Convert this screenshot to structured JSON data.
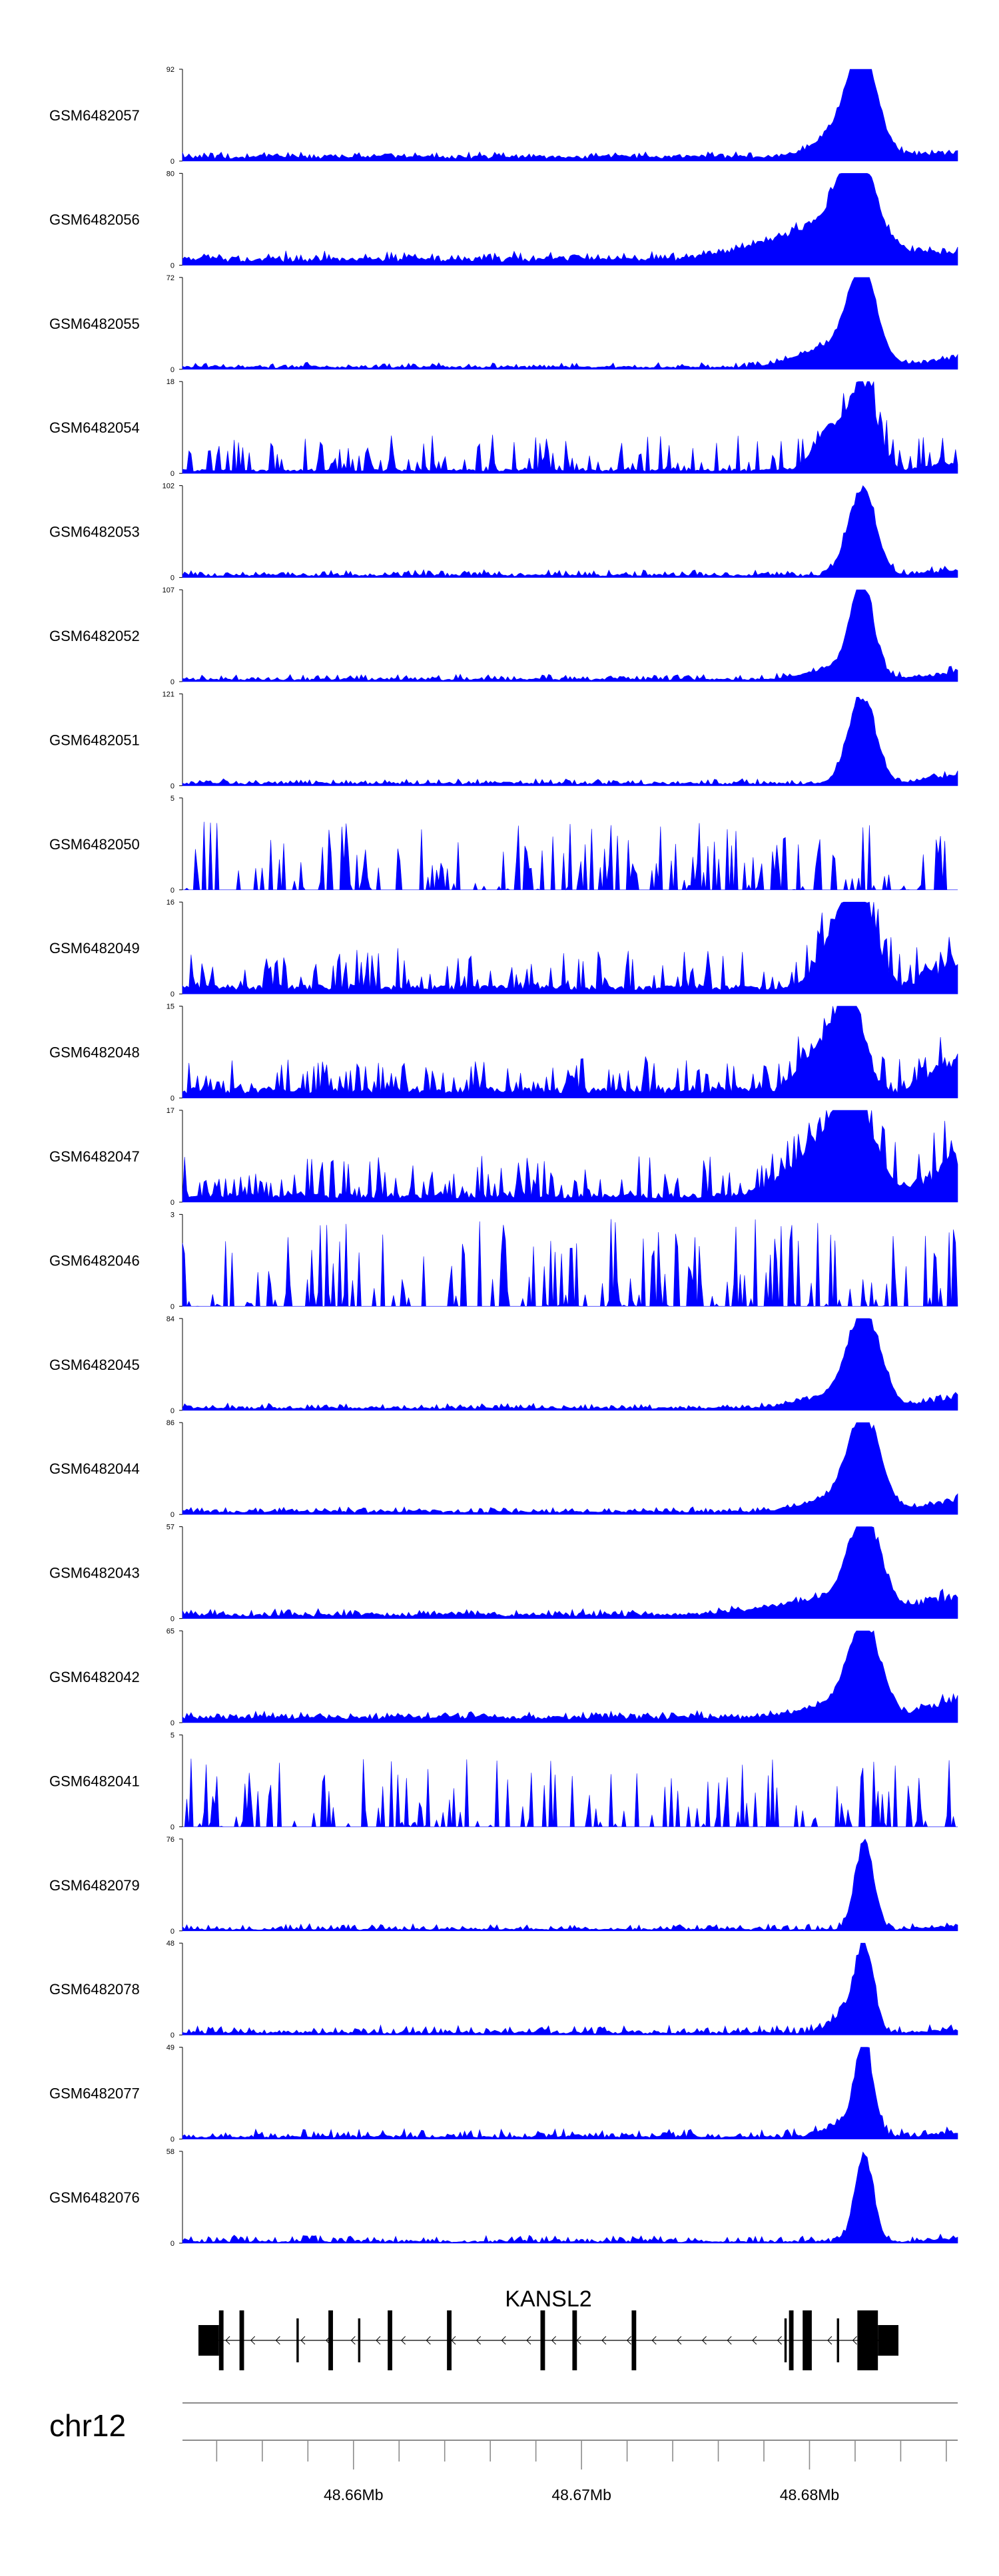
{
  "chart_data": {
    "type": "area",
    "color": "#0000ff",
    "tracks": [
      {
        "name": "GSM6482057",
        "ymax": 92,
        "baseline": 0.06,
        "noise": 0.05,
        "peaks": [
          [
            48.6823,
            1.0,
            0.0006
          ],
          [
            48.6817,
            0.35,
            0.0012
          ]
        ],
        "tail": 0.06
      },
      {
        "name": "GSM6482056",
        "ymax": 80,
        "baseline": 0.08,
        "noise": 0.08,
        "peaks": [
          [
            48.682,
            1.0,
            0.0008
          ],
          [
            48.6805,
            0.35,
            0.0025
          ]
        ],
        "tail": 0.06
      },
      {
        "name": "GSM6482055",
        "ymax": 72,
        "baseline": 0.03,
        "noise": 0.05,
        "peaks": [
          [
            48.6823,
            1.0,
            0.0006
          ],
          [
            48.6812,
            0.25,
            0.0015
          ]
        ],
        "tail": 0.15
      },
      {
        "name": "GSM6482054",
        "ymax": 18,
        "baseline": 0.05,
        "noise": 0.38,
        "peaks": [
          [
            48.6823,
            1.0,
            0.0006
          ],
          [
            48.6808,
            0.45,
            0.0006
          ]
        ],
        "tail": 0.1
      },
      {
        "name": "GSM6482053",
        "ymax": 102,
        "baseline": 0.03,
        "noise": 0.06,
        "peaks": [
          [
            48.6823,
            1.0,
            0.0006
          ]
        ],
        "tail": 0.08
      },
      {
        "name": "GSM6482052",
        "ymax": 107,
        "baseline": 0.03,
        "noise": 0.06,
        "peaks": [
          [
            48.6823,
            1.0,
            0.0005
          ],
          [
            48.6814,
            0.15,
            0.0012
          ]
        ],
        "tail": 0.12
      },
      {
        "name": "GSM6482051",
        "ymax": 121,
        "baseline": 0.03,
        "noise": 0.05,
        "peaks": [
          [
            48.6823,
            1.0,
            0.0006
          ]
        ],
        "tail": 0.15
      },
      {
        "name": "GSM6482050",
        "ymax": 5,
        "baseline": 0.0,
        "noise": 0.75,
        "peaks": [],
        "tail": 0.0
      },
      {
        "name": "GSM6482049",
        "ymax": 16,
        "baseline": 0.1,
        "noise": 0.4,
        "peaks": [
          [
            48.6822,
            0.95,
            0.0007
          ],
          [
            48.6812,
            0.5,
            0.0008
          ]
        ],
        "tail": 0.45
      },
      {
        "name": "GSM6482048",
        "ymax": 15,
        "baseline": 0.12,
        "noise": 0.35,
        "peaks": [
          [
            48.6818,
            1.0,
            0.0006
          ],
          [
            48.6805,
            0.5,
            0.0008
          ]
        ],
        "tail": 0.45
      },
      {
        "name": "GSM6482047",
        "ymax": 17,
        "baseline": 0.1,
        "noise": 0.45,
        "peaks": [
          [
            48.682,
            0.75,
            0.0008
          ],
          [
            48.6808,
            0.6,
            0.0015
          ]
        ],
        "tail": 0.55
      },
      {
        "name": "GSM6482046",
        "ymax": 3,
        "baseline": 0.0,
        "noise": 0.95,
        "peaks": [],
        "tail": 0.0
      },
      {
        "name": "GSM6482045",
        "ymax": 84,
        "baseline": 0.03,
        "noise": 0.05,
        "peaks": [
          [
            48.6824,
            1.0,
            0.0007
          ],
          [
            48.6813,
            0.15,
            0.0015
          ]
        ],
        "tail": 0.18
      },
      {
        "name": "GSM6482044",
        "ymax": 86,
        "baseline": 0.04,
        "noise": 0.05,
        "peaks": [
          [
            48.6824,
            1.0,
            0.0007
          ],
          [
            48.6813,
            0.15,
            0.0015
          ]
        ],
        "tail": 0.2
      },
      {
        "name": "GSM6482043",
        "ymax": 57,
        "baseline": 0.05,
        "noise": 0.06,
        "peaks": [
          [
            48.6824,
            1.0,
            0.0007
          ],
          [
            48.681,
            0.18,
            0.0025
          ]
        ],
        "tail": 0.28
      },
      {
        "name": "GSM6482042",
        "ymax": 65,
        "baseline": 0.08,
        "noise": 0.06,
        "peaks": [
          [
            48.6824,
            1.0,
            0.0007
          ],
          [
            48.6813,
            0.15,
            0.0015
          ]
        ],
        "tail": 0.3
      },
      {
        "name": "GSM6482041",
        "ymax": 5,
        "baseline": 0.0,
        "noise": 0.75,
        "peaks": [],
        "tail": 0.0
      },
      {
        "name": "GSM6482079",
        "ymax": 76,
        "baseline": 0.02,
        "noise": 0.06,
        "peaks": [
          [
            48.6824,
            1.0,
            0.0004
          ]
        ],
        "tail": 0.05
      },
      {
        "name": "GSM6482078",
        "ymax": 48,
        "baseline": 0.03,
        "noise": 0.08,
        "peaks": [
          [
            48.6824,
            1.0,
            0.0004
          ],
          [
            48.6815,
            0.2,
            0.0006
          ]
        ],
        "tail": 0.05
      },
      {
        "name": "GSM6482077",
        "ymax": 49,
        "baseline": 0.03,
        "noise": 0.09,
        "peaks": [
          [
            48.6824,
            1.0,
            0.0004
          ],
          [
            48.6815,
            0.15,
            0.0008
          ]
        ],
        "tail": 0.06
      },
      {
        "name": "GSM6482076",
        "ymax": 58,
        "baseline": 0.02,
        "noise": 0.07,
        "peaks": [
          [
            48.6824,
            1.0,
            0.0004
          ]
        ],
        "tail": 0.05
      }
    ],
    "gene": {
      "name": "KANSL2",
      "strand": "-",
      "start": 48.6532,
      "end": 48.6839,
      "exons": [
        [
          48.6532,
          48.6541,
          "utr"
        ],
        [
          48.6541,
          48.6543,
          "cds"
        ],
        [
          48.655,
          48.6552,
          "cds"
        ],
        [
          48.6575,
          48.6576,
          "thin"
        ],
        [
          48.6589,
          48.6591,
          "cds"
        ],
        [
          48.6602,
          48.6603,
          "thin"
        ],
        [
          48.6615,
          48.6617,
          "cds"
        ],
        [
          48.6641,
          48.6643,
          "cds"
        ],
        [
          48.6682,
          48.6684,
          "cds"
        ],
        [
          48.6696,
          48.6698,
          "cds"
        ],
        [
          48.6722,
          48.6724,
          "cds"
        ],
        [
          48.6789,
          48.679,
          "thin"
        ],
        [
          48.6791,
          48.6793,
          "cds"
        ],
        [
          48.6797,
          48.6801,
          "cds"
        ],
        [
          48.6812,
          48.6813,
          "thin"
        ],
        [
          48.6821,
          48.683,
          "cds"
        ],
        [
          48.683,
          48.6839,
          "utr"
        ]
      ]
    },
    "chrom": "chr12",
    "xlim": [
      48.6525,
      48.6865
    ],
    "minor_tick_step": 0.002,
    "major_ticks": [
      48.66,
      48.67,
      48.68
    ],
    "major_tick_labels": [
      "48.66Mb",
      "48.67Mb",
      "48.68Mb"
    ],
    "ymin_label": "0"
  }
}
